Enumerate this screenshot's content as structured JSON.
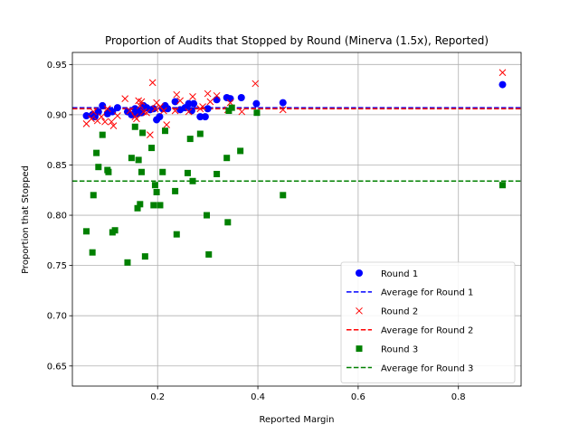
{
  "chart_data": {
    "type": "scatter",
    "title": "Proportion of Audits that Stopped by Round (Minerva (1.5x), Reported)",
    "xlabel": "Reported Margin",
    "ylabel": "Proportion that Stopped",
    "xlim": [
      0.03,
      0.925
    ],
    "ylim": [
      0.63,
      0.962
    ],
    "xticks": [
      0.2,
      0.4,
      0.6,
      0.8
    ],
    "xtick_labels": [
      "0.2",
      "0.4",
      "0.6",
      "0.8"
    ],
    "yticks": [
      0.65,
      0.7,
      0.75,
      0.8,
      0.85,
      0.9,
      0.95
    ],
    "ytick_labels": [
      "0.65",
      "0.70",
      "0.75",
      "0.80",
      "0.85",
      "0.90",
      "0.95"
    ],
    "grid": true,
    "legend_position": "lower-right",
    "series": [
      {
        "name": "Round 1",
        "marker": "circle",
        "color": "#0000ff",
        "points": [
          [
            0.058,
            0.899
          ],
          [
            0.07,
            0.9
          ],
          [
            0.075,
            0.898
          ],
          [
            0.082,
            0.903
          ],
          [
            0.09,
            0.909
          ],
          [
            0.1,
            0.901
          ],
          [
            0.105,
            0.904
          ],
          [
            0.11,
            0.903
          ],
          [
            0.12,
            0.907
          ],
          [
            0.14,
            0.903
          ],
          [
            0.148,
            0.9
          ],
          [
            0.155,
            0.906
          ],
          [
            0.16,
            0.901
          ],
          [
            0.165,
            0.904
          ],
          [
            0.168,
            0.902
          ],
          [
            0.172,
            0.909
          ],
          [
            0.178,
            0.907
          ],
          [
            0.185,
            0.905
          ],
          [
            0.192,
            0.906
          ],
          [
            0.198,
            0.895
          ],
          [
            0.204,
            0.898
          ],
          [
            0.21,
            0.906
          ],
          [
            0.215,
            0.909
          ],
          [
            0.22,
            0.906
          ],
          [
            0.235,
            0.913
          ],
          [
            0.245,
            0.905
          ],
          [
            0.255,
            0.907
          ],
          [
            0.262,
            0.911
          ],
          [
            0.268,
            0.904
          ],
          [
            0.272,
            0.911
          ],
          [
            0.285,
            0.898
          ],
          [
            0.295,
            0.898
          ],
          [
            0.3,
            0.906
          ],
          [
            0.318,
            0.915
          ],
          [
            0.338,
            0.917
          ],
          [
            0.345,
            0.916
          ],
          [
            0.367,
            0.917
          ],
          [
            0.397,
            0.911
          ],
          [
            0.45,
            0.912
          ],
          [
            0.888,
            0.93
          ]
        ]
      },
      {
        "name": "Average for Round 1",
        "line": "dashed",
        "color": "#0000ff",
        "y": 0.907
      },
      {
        "name": "Round 2",
        "marker": "x",
        "color": "#ff0000",
        "points": [
          [
            0.058,
            0.891
          ],
          [
            0.068,
            0.896
          ],
          [
            0.072,
            0.903
          ],
          [
            0.08,
            0.894
          ],
          [
            0.088,
            0.898
          ],
          [
            0.095,
            0.893
          ],
          [
            0.1,
            0.906
          ],
          [
            0.108,
            0.893
          ],
          [
            0.112,
            0.889
          ],
          [
            0.12,
            0.899
          ],
          [
            0.135,
            0.916
          ],
          [
            0.145,
            0.904
          ],
          [
            0.155,
            0.898
          ],
          [
            0.158,
            0.896
          ],
          [
            0.162,
            0.914
          ],
          [
            0.165,
            0.909
          ],
          [
            0.168,
            0.913
          ],
          [
            0.172,
            0.903
          ],
          [
            0.178,
            0.902
          ],
          [
            0.185,
            0.88
          ],
          [
            0.19,
            0.932
          ],
          [
            0.195,
            0.906
          ],
          [
            0.198,
            0.912
          ],
          [
            0.205,
            0.908
          ],
          [
            0.212,
            0.904
          ],
          [
            0.218,
            0.89
          ],
          [
            0.235,
            0.904
          ],
          [
            0.238,
            0.92
          ],
          [
            0.245,
            0.914
          ],
          [
            0.262,
            0.903
          ],
          [
            0.27,
            0.918
          ],
          [
            0.285,
            0.906
          ],
          [
            0.29,
            0.908
          ],
          [
            0.3,
            0.921
          ],
          [
            0.305,
            0.913
          ],
          [
            0.318,
            0.919
          ],
          [
            0.34,
            0.905
          ],
          [
            0.345,
            0.912
          ],
          [
            0.368,
            0.903
          ],
          [
            0.395,
            0.931
          ],
          [
            0.45,
            0.905
          ],
          [
            0.888,
            0.942
          ]
        ]
      },
      {
        "name": "Average for Round 2",
        "line": "dashed",
        "color": "#ff0000",
        "y": 0.906
      },
      {
        "name": "Round 3",
        "marker": "square",
        "color": "#008000",
        "points": [
          [
            0.058,
            0.784
          ],
          [
            0.07,
            0.763
          ],
          [
            0.072,
            0.82
          ],
          [
            0.078,
            0.862
          ],
          [
            0.082,
            0.848
          ],
          [
            0.09,
            0.88
          ],
          [
            0.1,
            0.845
          ],
          [
            0.102,
            0.843
          ],
          [
            0.11,
            0.783
          ],
          [
            0.115,
            0.785
          ],
          [
            0.14,
            0.753
          ],
          [
            0.148,
            0.857
          ],
          [
            0.155,
            0.888
          ],
          [
            0.16,
            0.807
          ],
          [
            0.162,
            0.855
          ],
          [
            0.165,
            0.811
          ],
          [
            0.168,
            0.843
          ],
          [
            0.17,
            0.882
          ],
          [
            0.175,
            0.759
          ],
          [
            0.188,
            0.867
          ],
          [
            0.192,
            0.81
          ],
          [
            0.195,
            0.83
          ],
          [
            0.198,
            0.823
          ],
          [
            0.205,
            0.81
          ],
          [
            0.21,
            0.843
          ],
          [
            0.215,
            0.884
          ],
          [
            0.235,
            0.824
          ],
          [
            0.238,
            0.781
          ],
          [
            0.26,
            0.842
          ],
          [
            0.265,
            0.876
          ],
          [
            0.27,
            0.834
          ],
          [
            0.285,
            0.881
          ],
          [
            0.298,
            0.8
          ],
          [
            0.302,
            0.761
          ],
          [
            0.318,
            0.841
          ],
          [
            0.338,
            0.857
          ],
          [
            0.34,
            0.793
          ],
          [
            0.342,
            0.904
          ],
          [
            0.348,
            0.907
          ],
          [
            0.365,
            0.864
          ],
          [
            0.398,
            0.902
          ],
          [
            0.45,
            0.82
          ],
          [
            0.888,
            0.83
          ]
        ]
      },
      {
        "name": "Average for Round 3",
        "line": "dashed",
        "color": "#008000",
        "y": 0.834
      }
    ]
  }
}
